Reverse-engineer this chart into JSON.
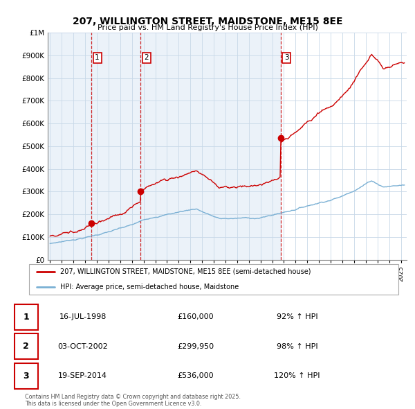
{
  "title": "207, WILLINGTON STREET, MAIDSTONE, ME15 8EE",
  "subtitle": "Price paid vs. HM Land Registry's House Price Index (HPI)",
  "legend_line1": "207, WILLINGTON STREET, MAIDSTONE, ME15 8EE (semi-detached house)",
  "legend_line2": "HPI: Average price, semi-detached house, Maidstone",
  "footer": "Contains HM Land Registry data © Crown copyright and database right 2025.\nThis data is licensed under the Open Government Licence v3.0.",
  "purchase_color": "#cc0000",
  "hpi_color": "#7ab0d4",
  "bg_color": "#dce8f5",
  "purchases": [
    {
      "date": 1998.54,
      "price": 160000,
      "label": "1"
    },
    {
      "date": 2002.75,
      "price": 299950,
      "label": "2"
    },
    {
      "date": 2014.72,
      "price": 536000,
      "label": "3"
    }
  ],
  "vlines": [
    1998.54,
    2002.75,
    2014.72
  ],
  "table_rows": [
    {
      "num": "1",
      "date": "16-JUL-1998",
      "price": "£160,000",
      "hpi": "92% ↑ HPI"
    },
    {
      "num": "2",
      "date": "03-OCT-2002",
      "price": "£299,950",
      "hpi": "98% ↑ HPI"
    },
    {
      "num": "3",
      "date": "19-SEP-2014",
      "price": "£536,000",
      "hpi": "120% ↑ HPI"
    }
  ],
  "ylim": [
    0,
    1000000
  ],
  "xlim_start": 1994.8,
  "xlim_end": 2025.5
}
